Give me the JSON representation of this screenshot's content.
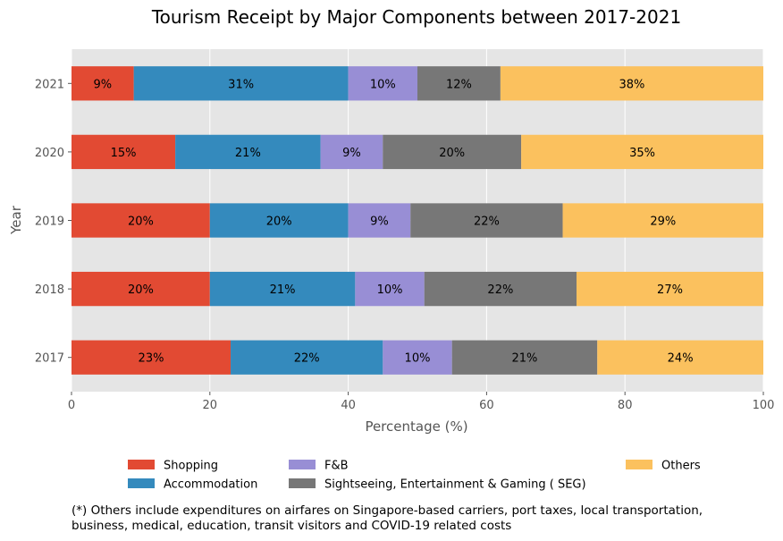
{
  "chart_data": {
    "type": "bar",
    "orientation": "horizontal",
    "stacked": true,
    "title": "Tourism Receipt by Major Components between 2017-2021",
    "xlabel": "Percentage (%)",
    "ylabel": "Year",
    "xlim": [
      0,
      100
    ],
    "xticks": [
      0,
      20,
      40,
      60,
      80,
      100
    ],
    "grid": true,
    "legend_position": "bottom",
    "categories": [
      "2017",
      "2018",
      "2019",
      "2020",
      "2021"
    ],
    "series": [
      {
        "name": "Shopping",
        "color": "#E24A33",
        "values": [
          23,
          20,
          20,
          15,
          9
        ]
      },
      {
        "name": "Accommodation",
        "color": "#348ABD",
        "values": [
          22,
          21,
          20,
          21,
          31
        ]
      },
      {
        "name": "F&B",
        "color": "#988ED5",
        "values": [
          10,
          10,
          9,
          9,
          10
        ]
      },
      {
        "name": "Sightseeing, Entertainment & Gaming ( SEG)",
        "color": "#777777",
        "values": [
          21,
          22,
          22,
          20,
          12
        ]
      },
      {
        "name": "Others",
        "color": "#FBC15E",
        "values": [
          24,
          27,
          29,
          35,
          38
        ]
      }
    ]
  },
  "footnote": {
    "line1": "(*) Others include expenditures on airfares on Singapore-based carriers, port taxes, local transportation,",
    "line2": "business, medical, education, transit visitors and COVID-19 related costs"
  }
}
